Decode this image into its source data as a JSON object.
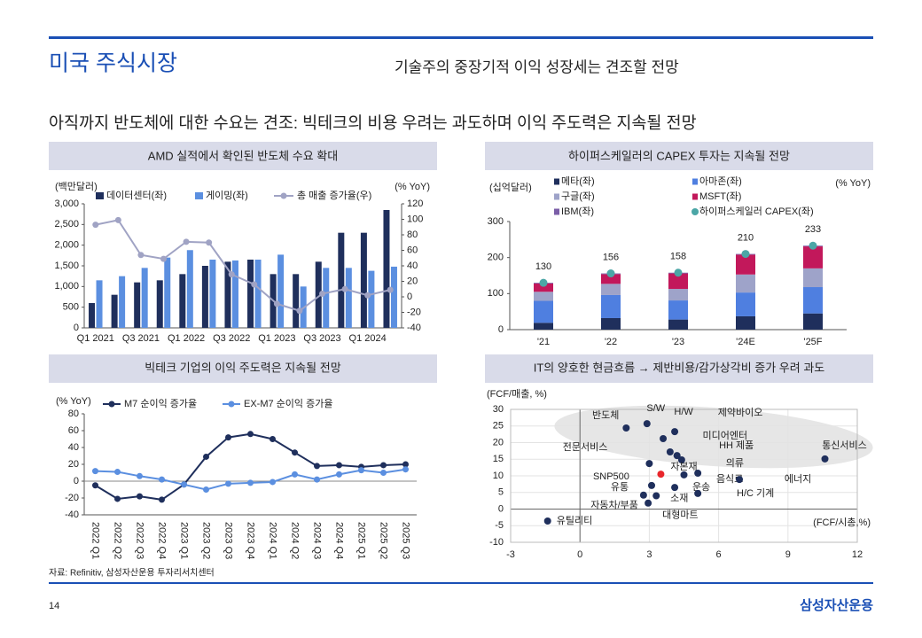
{
  "header": {
    "title": "미국 주식시장",
    "subtitle": "기술주의 중장기적 이익 성장세는 견조할 전망",
    "headline": "아직까지 반도체에 대한 수요는 견조: 빅테크의 비용 우려는 과도하며 이익 주도력은 지속될 전망"
  },
  "chart_data": [
    {
      "type": "bar",
      "title": "AMD 실적에서 확인된 반도체 수요 확대",
      "y_label": "(백만달러)",
      "y2_label": "(% YoY)",
      "categories": [
        "Q1 2021",
        null,
        "Q3 2021",
        null,
        "Q1 2022",
        null,
        "Q3 2022",
        null,
        "Q1 2023",
        null,
        "Q3 2023",
        null,
        "Q1 2024",
        null
      ],
      "series": [
        {
          "name": "데이터센터(좌)",
          "color": "#1f2f5c",
          "values": [
            600,
            800,
            1100,
            1150,
            1300,
            1500,
            1600,
            1650,
            1300,
            1300,
            1600,
            2300,
            2300,
            2850
          ]
        },
        {
          "name": "게이밍(좌)",
          "color": "#5b8fe0",
          "values": [
            1150,
            1250,
            1450,
            1700,
            1880,
            1650,
            1630,
            1650,
            1770,
            1000,
            1450,
            1450,
            1380,
            1480
          ]
        },
        {
          "name": "총 매출 증가율(우)",
          "color": "#a0a3c4",
          "type": "line",
          "axis": "y2",
          "values": [
            93,
            99,
            54,
            49,
            71,
            70,
            29,
            16,
            -9,
            -18,
            4,
            10,
            2,
            9
          ]
        }
      ],
      "ylim": [
        0,
        3000
      ],
      "yticks": [
        0,
        500,
        {
          "value": 1000,
          "label": "1,000"
        },
        {
          "value": 1500,
          "label": "1,500"
        },
        {
          "value": 2000,
          "label": "2,000"
        },
        {
          "value": 2500,
          "label": "2,500"
        },
        {
          "value": 3000,
          "label": "3,000"
        }
      ],
      "y2lim": [
        -40,
        120
      ],
      "y2ticks": [
        -40,
        -20,
        0,
        20,
        40,
        60,
        80,
        100,
        120
      ],
      "grid": false
    },
    {
      "type": "stacked_bar",
      "title": "하이퍼스케일러의 CAPEX 투자는 지속될 전망",
      "y_label": "(십억달러)",
      "y2_label": "(% YoY)",
      "categories": [
        "'21",
        "'22",
        "'23",
        "'24E",
        "'25F"
      ],
      "series": [
        {
          "name": "메타(좌)",
          "color": "#1f2f5c",
          "values": [
            19,
            32,
            28,
            37,
            45
          ]
        },
        {
          "name": "아마존(좌)",
          "color": "#4f7fe0",
          "values": [
            61,
            64,
            53,
            66,
            73
          ]
        },
        {
          "name": "구글(좌)",
          "color": "#9ea3c9",
          "values": [
            25,
            31,
            32,
            50,
            52
          ]
        },
        {
          "name": "MSFT(좌)",
          "color": "#c2185b",
          "values": [
            23,
            27,
            43,
            55,
            61
          ]
        },
        {
          "name": "IBM(좌)",
          "color": "#7b5ea7",
          "values": [
            2,
            2,
            2,
            2,
            2
          ]
        },
        {
          "name": "하이퍼스케일러 CAPEX(좌)",
          "color": "#4ba6a6",
          "type": "scatter",
          "values": [
            130,
            156,
            158,
            210,
            233
          ]
        }
      ],
      "ylim": [
        0,
        300
      ],
      "yticks": [
        0,
        100,
        200,
        300
      ],
      "grid": false
    },
    {
      "type": "line",
      "title": "빅테크 기업의 이익 주도력은 지속될 전망",
      "y_label": "(% YoY)",
      "categories": [
        "2022 Q1",
        "2022 Q2",
        "2022 Q3",
        "2022 Q4",
        "2023 Q1",
        "2023 Q2",
        "2023 Q3",
        "2023 Q4",
        "2024 Q1",
        "2024 Q2",
        "2024 Q3",
        "2024 Q4",
        "2025 Q1",
        "2025 Q2",
        "2025 Q3"
      ],
      "series": [
        {
          "name": "M7 순이익 증가율",
          "color": "#1f2f5c",
          "values": [
            -5,
            -21,
            -18,
            -22,
            -4,
            29,
            52,
            56,
            50,
            34,
            18,
            19,
            17,
            19,
            20
          ]
        },
        {
          "name": "EX-M7 순이익 증가율",
          "color": "#5b8fe0",
          "values": [
            12,
            11,
            6,
            2,
            -4,
            -10,
            -3,
            -2,
            -1,
            8,
            2,
            8,
            13,
            10,
            14
          ]
        }
      ],
      "ylim": [
        -40,
        80
      ],
      "yticks": [
        -40,
        -20,
        0,
        20,
        40,
        60,
        80
      ],
      "grid": false
    },
    {
      "type": "scatter",
      "title": "IT의 양호한 현금흐름 → 제반비용/감가상각비 증가 우려 과도",
      "y_label": "(FCF/매출, %)",
      "x_label": "(FCF/시총,%)",
      "labels": [
        "반도체",
        "S/W",
        "H/W",
        "제약바이오",
        "미디어엔터",
        "HH 제품",
        "의류",
        "전문서비스",
        "통신서비스",
        "SNP500",
        "자본재",
        "유통",
        "운송",
        "음식료",
        "에너지",
        "소재",
        "H/C 기계",
        "자동차/부품",
        "대형마트",
        "유틸리티"
      ],
      "x": [
        2.0,
        2.9,
        4.1,
        3.6,
        3.9,
        4.2,
        4.4,
        3.0,
        10.6,
        3.5,
        4.5,
        3.1,
        4.1,
        5.1,
        6.9,
        3.3,
        5.1,
        2.75,
        2.95,
        -1.4
      ],
      "values": [
        24.4,
        25.7,
        23.3,
        21.2,
        17.2,
        16.1,
        14.8,
        13.7,
        15.1,
        10.5,
        10.3,
        7.1,
        6.5,
        10.8,
        8.9,
        4.0,
        4.7,
        4.2,
        1.8,
        -3.6
      ],
      "colors": [
        "#1f2f5c",
        "#1f2f5c",
        "#1f2f5c",
        "#1f2f5c",
        "#1f2f5c",
        "#1f2f5c",
        "#1f2f5c",
        "#1f2f5c",
        "#1f2f5c",
        "#e8262b",
        "#1f2f5c",
        "#1f2f5c",
        "#1f2f5c",
        "#1f2f5c",
        "#1f2f5c",
        "#1f2f5c",
        "#1f2f5c",
        "#1f2f5c",
        "#1f2f5c",
        "#1f2f5c"
      ],
      "xlim": [
        -3,
        12
      ],
      "xticks": [
        -3,
        0,
        3,
        6,
        9,
        12
      ],
      "ylim": [
        -10,
        30
      ],
      "yticks": [
        -10,
        -5,
        0,
        5,
        10,
        15,
        20,
        25,
        30
      ],
      "grid": true
    }
  ],
  "footer": {
    "source": "자료: Refinitiv, 삼성자산운용 투자리서치센터",
    "page": "14",
    "brand": "삼성자산운용"
  }
}
